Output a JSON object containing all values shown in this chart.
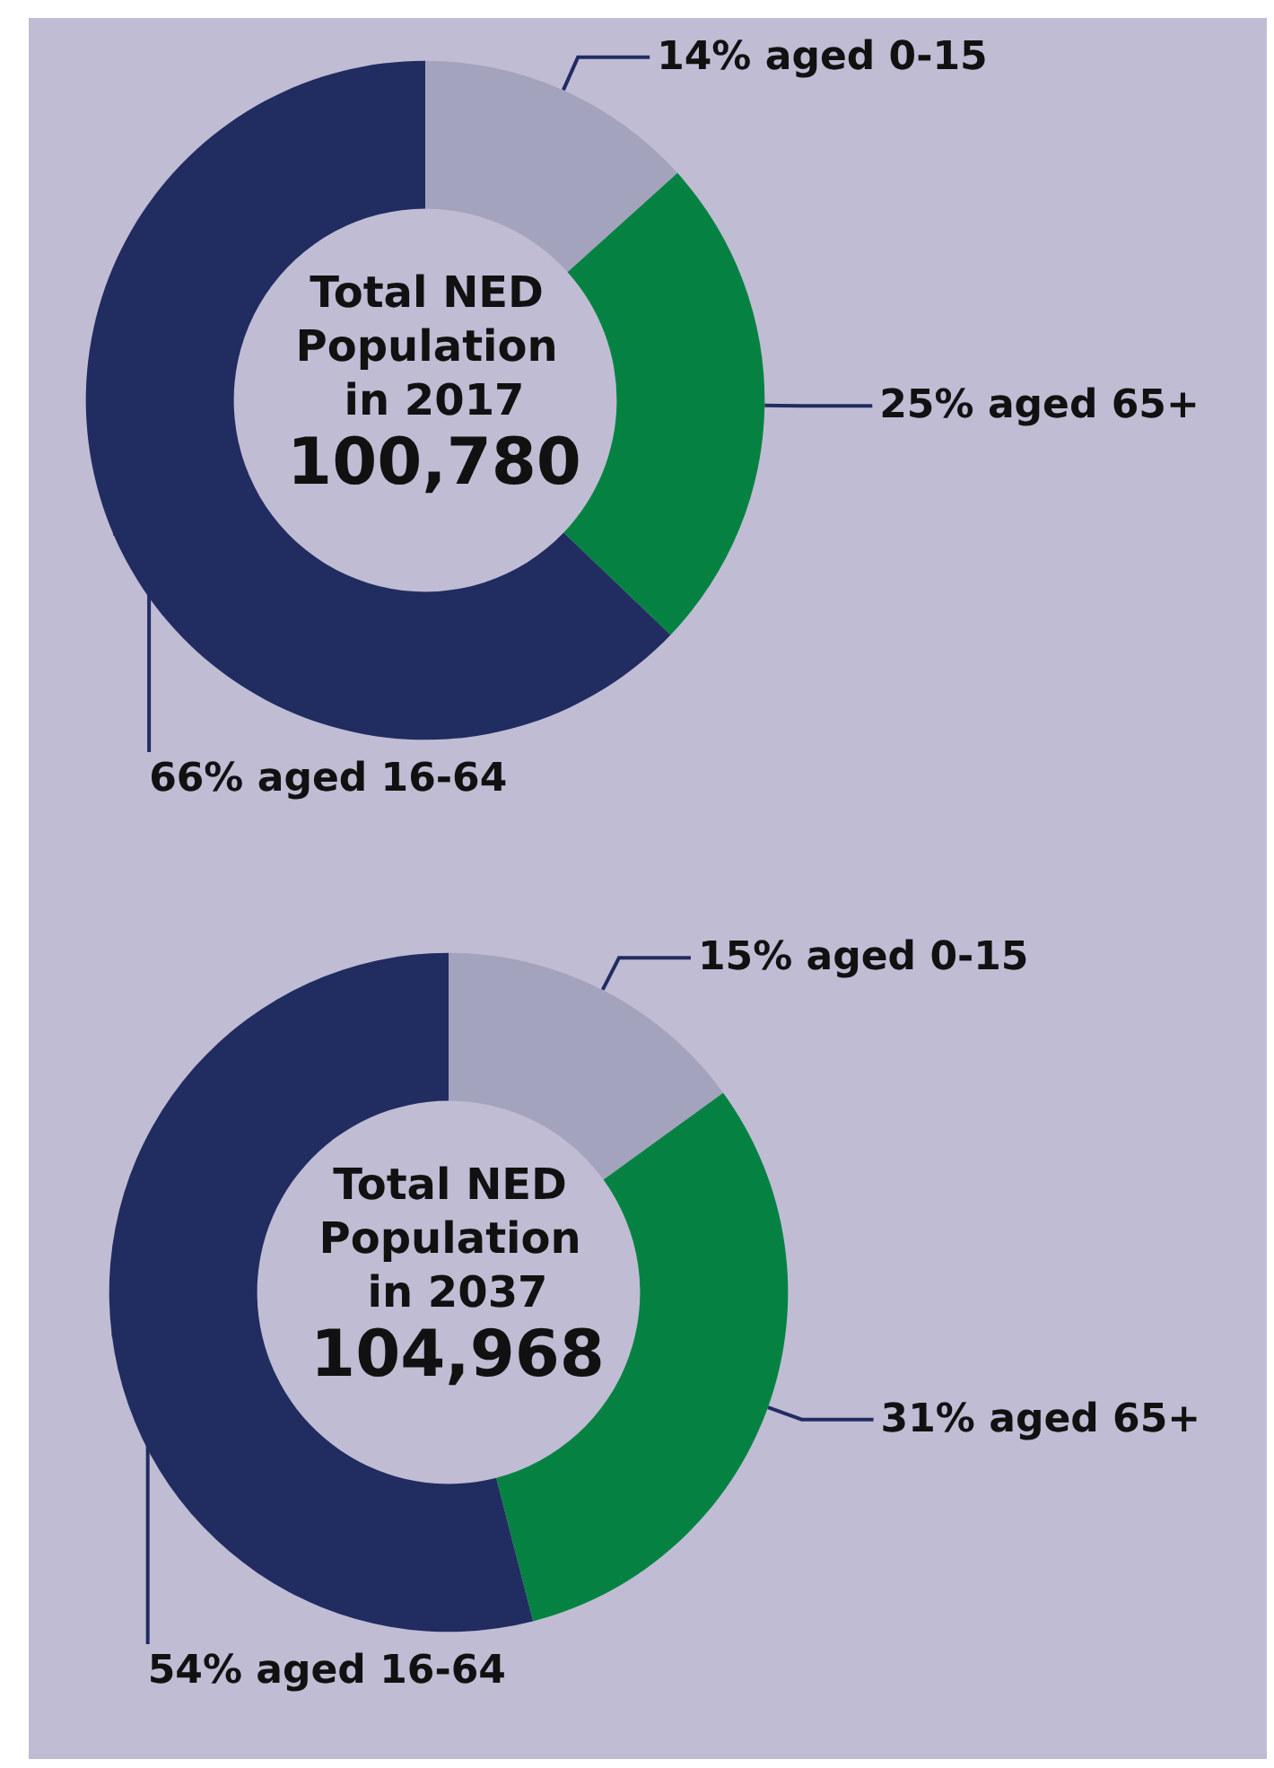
{
  "chart_data": [
    {
      "type": "donut",
      "title": "Total NED Population in 2017",
      "subtitle": "100,780",
      "categories": [
        "aged 0-15",
        "aged 65+",
        "aged 16-64"
      ],
      "values": [
        14,
        25,
        66
      ],
      "value_labels": [
        "14%",
        "25%",
        "66%"
      ],
      "colors": [
        "#a4a3bd",
        "#058242",
        "#212c61"
      ],
      "legend": false
    },
    {
      "type": "donut",
      "title": "Total NED Population in 2037",
      "subtitle": "104,968",
      "categories": [
        "aged 0-15",
        "aged 65+",
        "aged 16-64"
      ],
      "values": [
        15,
        31,
        54
      ],
      "value_labels": [
        "15%",
        "31%",
        "54%"
      ],
      "colors": [
        "#a4a3bd",
        "#058242",
        "#212c61"
      ],
      "legend": false
    }
  ]
}
